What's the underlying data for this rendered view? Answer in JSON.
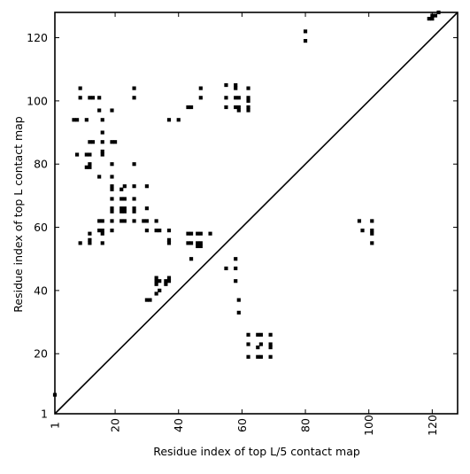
{
  "chart_data": {
    "type": "scatter",
    "marker": "square",
    "xlabel": "Residue index of top L/5 contact map",
    "ylabel": "Residue index of top L contact map",
    "xlim": [
      1,
      128
    ],
    "ylim": [
      1,
      128
    ],
    "xticks": [
      1,
      20,
      40,
      60,
      80,
      100,
      120
    ],
    "yticks": [
      1,
      20,
      40,
      60,
      80,
      100,
      120
    ],
    "xtick_rotation": -90,
    "diagonal": true,
    "grid": false,
    "colors": {
      "marker": "#000000",
      "frame": "#000000",
      "background": "#ffffff"
    },
    "points": [
      [
        1,
        7
      ],
      [
        7,
        94
      ],
      [
        8,
        94
      ],
      [
        8,
        83
      ],
      [
        9,
        104
      ],
      [
        9,
        101
      ],
      [
        9,
        55
      ],
      [
        11,
        94
      ],
      [
        11,
        83
      ],
      [
        12,
        83
      ],
      [
        11,
        79
      ],
      [
        12,
        79
      ],
      [
        12,
        80
      ],
      [
        12,
        87
      ],
      [
        13,
        87
      ],
      [
        12,
        101
      ],
      [
        13,
        101
      ],
      [
        12,
        58
      ],
      [
        12,
        55
      ],
      [
        12,
        56
      ],
      [
        15,
        101
      ],
      [
        15,
        97
      ],
      [
        15,
        76
      ],
      [
        15,
        62
      ],
      [
        16,
        62
      ],
      [
        15,
        59
      ],
      [
        16,
        59
      ],
      [
        16,
        58
      ],
      [
        16,
        55
      ],
      [
        16,
        94
      ],
      [
        16,
        90
      ],
      [
        16,
        87
      ],
      [
        16,
        84
      ],
      [
        16,
        83
      ],
      [
        19,
        97
      ],
      [
        19,
        87
      ],
      [
        20,
        87
      ],
      [
        19,
        80
      ],
      [
        19,
        76
      ],
      [
        19,
        73
      ],
      [
        19,
        72
      ],
      [
        19,
        69
      ],
      [
        19,
        66
      ],
      [
        19,
        65
      ],
      [
        19,
        62
      ],
      [
        19,
        59
      ],
      [
        22,
        72
      ],
      [
        23,
        73
      ],
      [
        22,
        69
      ],
      [
        23,
        69
      ],
      [
        22,
        66
      ],
      [
        23,
        66
      ],
      [
        22,
        65
      ],
      [
        23,
        65
      ],
      [
        22,
        62
      ],
      [
        23,
        62
      ],
      [
        26,
        104
      ],
      [
        26,
        101
      ],
      [
        26,
        80
      ],
      [
        26,
        73
      ],
      [
        26,
        69
      ],
      [
        26,
        66
      ],
      [
        26,
        65
      ],
      [
        26,
        62
      ],
      [
        29,
        62
      ],
      [
        30,
        62
      ],
      [
        30,
        73
      ],
      [
        30,
        66
      ],
      [
        30,
        59
      ],
      [
        30,
        37
      ],
      [
        31,
        37
      ],
      [
        33,
        62
      ],
      [
        33,
        59
      ],
      [
        34,
        59
      ],
      [
        33,
        44
      ],
      [
        33,
        43
      ],
      [
        34,
        43
      ],
      [
        33,
        42
      ],
      [
        33,
        39
      ],
      [
        34,
        40
      ],
      [
        36,
        43
      ],
      [
        37,
        43
      ],
      [
        36,
        42
      ],
      [
        37,
        44
      ],
      [
        37,
        59
      ],
      [
        37,
        56
      ],
      [
        37,
        55
      ],
      [
        37,
        94
      ],
      [
        40,
        94
      ],
      [
        43,
        98
      ],
      [
        44,
        98
      ],
      [
        43,
        58
      ],
      [
        44,
        58
      ],
      [
        43,
        55
      ],
      [
        44,
        55
      ],
      [
        44,
        50
      ],
      [
        46,
        58
      ],
      [
        47,
        58
      ],
      [
        46,
        55
      ],
      [
        47,
        55
      ],
      [
        46,
        54
      ],
      [
        47,
        54
      ],
      [
        47,
        104
      ],
      [
        47,
        101
      ],
      [
        50,
        58
      ],
      [
        55,
        105
      ],
      [
        55,
        101
      ],
      [
        55,
        98
      ],
      [
        55,
        47
      ],
      [
        58,
        105
      ],
      [
        58,
        104
      ],
      [
        58,
        101
      ],
      [
        59,
        101
      ],
      [
        58,
        98
      ],
      [
        59,
        98
      ],
      [
        59,
        97
      ],
      [
        58,
        50
      ],
      [
        58,
        47
      ],
      [
        58,
        43
      ],
      [
        59,
        37
      ],
      [
        59,
        33
      ],
      [
        62,
        104
      ],
      [
        62,
        101
      ],
      [
        62,
        100
      ],
      [
        62,
        98
      ],
      [
        62,
        97
      ],
      [
        62,
        26
      ],
      [
        62,
        23
      ],
      [
        62,
        19
      ],
      [
        65,
        26
      ],
      [
        66,
        26
      ],
      [
        65,
        22
      ],
      [
        66,
        23
      ],
      [
        65,
        19
      ],
      [
        66,
        19
      ],
      [
        69,
        26
      ],
      [
        69,
        23
      ],
      [
        69,
        22
      ],
      [
        69,
        19
      ],
      [
        80,
        122
      ],
      [
        80,
        119
      ],
      [
        97,
        62
      ],
      [
        98,
        59
      ],
      [
        101,
        62
      ],
      [
        101,
        59
      ],
      [
        101,
        58
      ],
      [
        101,
        55
      ],
      [
        119,
        126
      ],
      [
        120,
        126
      ],
      [
        120,
        127
      ],
      [
        121,
        127
      ],
      [
        122,
        128
      ]
    ]
  }
}
